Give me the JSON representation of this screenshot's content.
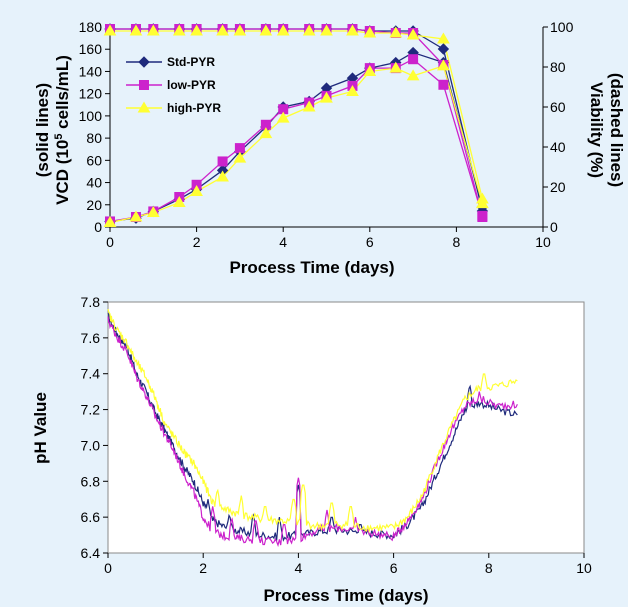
{
  "chart_data": [
    {
      "type": "line",
      "x_label": "Process Time (days)",
      "xlim": [
        0,
        10
      ],
      "x_ticks": [
        "0",
        "2",
        "4",
        "6",
        "8",
        "10"
      ],
      "y_left_label_line1": "(solid lines)",
      "y_left_label_line2_prefix": "VCD (10",
      "y_left_label_superscript": "5",
      "y_left_label_line2_suffix": " cells/mL)",
      "y_left_lim": [
        0,
        180
      ],
      "y_left_ticks": [
        "0",
        "20",
        "40",
        "60",
        "80",
        "100",
        "120",
        "140",
        "160",
        "180"
      ],
      "y_right_label_line1": "(dashed lines)",
      "y_right_label_line2": "Viability (%)",
      "y_right_lim": [
        0,
        100
      ],
      "y_right_ticks": [
        "0",
        "20",
        "40",
        "60",
        "80",
        "100"
      ],
      "legend": [
        "Std-PYR",
        "low-PYR",
        "high-PYR"
      ],
      "legend_position": "top-left",
      "x": [
        0,
        0.6,
        1,
        1.6,
        2,
        2.6,
        3,
        3.6,
        4,
        4.6,
        5,
        5.6,
        6,
        6.6,
        7,
        7.7,
        8.6
      ],
      "series": [
        {
          "name": "Std-PYR",
          "color": "#1f2a7c",
          "marker": "diamond",
          "vcd": [
            5,
            8,
            14,
            25,
            34,
            51,
            68,
            90,
            108,
            113,
            125,
            134,
            143,
            148,
            157,
            148,
            18
          ],
          "viability": [
            99,
            99,
            99,
            99,
            99,
            99,
            99,
            99,
            99,
            99,
            99,
            99,
            98,
            98,
            98,
            89,
            8
          ]
        },
        {
          "name": "low-PYR",
          "color": "#cc22cc",
          "marker": "square",
          "vcd": [
            5,
            9,
            14,
            27,
            38,
            59,
            71,
            92,
            106,
            112,
            118,
            127,
            143,
            143,
            151,
            128,
            10
          ],
          "viability": [
            99,
            99,
            99,
            99,
            99,
            99,
            99,
            99,
            99,
            99,
            99,
            99,
            98,
            97,
            97,
            81,
            5
          ]
        },
        {
          "name": "high-PYR",
          "color": "#ffff33",
          "marker": "triangle",
          "vcd": [
            4,
            9,
            13,
            22,
            32,
            45,
            62,
            84,
            98,
            108,
            116,
            122,
            140,
            143,
            136,
            145,
            21
          ],
          "viability": [
            98,
            98,
            98,
            98,
            98,
            98,
            98,
            98,
            98,
            98,
            98,
            98,
            97,
            97,
            96,
            94,
            14
          ]
        }
      ]
    },
    {
      "type": "line",
      "x_label": "Process Time (days)",
      "y_label": "pH Value",
      "xlim": [
        0,
        10
      ],
      "ylim": [
        6.4,
        7.8
      ],
      "x_ticks": [
        "0",
        "2",
        "4",
        "6",
        "8",
        "10"
      ],
      "y_ticks": [
        "6.4",
        "6.6",
        "6.8",
        "7.0",
        "7.2",
        "7.4",
        "7.6",
        "7.8"
      ],
      "grid": false,
      "series": [
        {
          "name": "Std-PYR",
          "color": "#1f2a7c",
          "points": [
            [
              0,
              7.72
            ],
            [
              0.2,
              7.62
            ],
            [
              0.4,
              7.55
            ],
            [
              0.6,
              7.4
            ],
            [
              0.8,
              7.3
            ],
            [
              1.0,
              7.18
            ],
            [
              1.2,
              7.08
            ],
            [
              1.4,
              6.98
            ],
            [
              1.6,
              6.88
            ],
            [
              1.8,
              6.8
            ],
            [
              2.0,
              6.68
            ],
            [
              2.2,
              6.58
            ],
            [
              2.5,
              6.54
            ],
            [
              2.8,
              6.52
            ],
            [
              3.2,
              6.5
            ],
            [
              3.6,
              6.49
            ],
            [
              4.0,
              6.5
            ],
            [
              4.4,
              6.52
            ],
            [
              4.8,
              6.53
            ],
            [
              5.2,
              6.52
            ],
            [
              5.6,
              6.51
            ],
            [
              6.0,
              6.5
            ],
            [
              6.3,
              6.56
            ],
            [
              6.6,
              6.66
            ],
            [
              6.9,
              6.84
            ],
            [
              7.2,
              7.02
            ],
            [
              7.5,
              7.2
            ],
            [
              7.8,
              7.24
            ],
            [
              8.2,
              7.2
            ],
            [
              8.6,
              7.17
            ]
          ],
          "spikes": [
            [
              2.1,
              6.7
            ],
            [
              2.55,
              6.62
            ],
            [
              3.05,
              6.62
            ],
            [
              3.6,
              6.6
            ],
            [
              4.0,
              6.78
            ],
            [
              4.7,
              6.62
            ],
            [
              5.3,
              6.58
            ],
            [
              7.6,
              7.34
            ]
          ]
        },
        {
          "name": "low-PYR",
          "color": "#cc22cc",
          "points": [
            [
              0,
              7.7
            ],
            [
              0.2,
              7.6
            ],
            [
              0.4,
              7.52
            ],
            [
              0.6,
              7.38
            ],
            [
              0.8,
              7.28
            ],
            [
              1.0,
              7.16
            ],
            [
              1.2,
              7.06
            ],
            [
              1.4,
              6.96
            ],
            [
              1.6,
              6.84
            ],
            [
              1.8,
              6.74
            ],
            [
              2.0,
              6.6
            ],
            [
              2.2,
              6.52
            ],
            [
              2.5,
              6.49
            ],
            [
              2.8,
              6.48
            ],
            [
              3.2,
              6.47
            ],
            [
              3.6,
              6.46
            ],
            [
              4.0,
              6.48
            ],
            [
              4.4,
              6.53
            ],
            [
              4.8,
              6.54
            ],
            [
              5.2,
              6.53
            ],
            [
              5.6,
              6.51
            ],
            [
              6.0,
              6.49
            ],
            [
              6.3,
              6.58
            ],
            [
              6.6,
              6.7
            ],
            [
              6.9,
              6.9
            ],
            [
              7.2,
              7.08
            ],
            [
              7.5,
              7.22
            ],
            [
              7.8,
              7.26
            ],
            [
              8.2,
              7.22
            ],
            [
              8.6,
              7.23
            ]
          ],
          "spikes": [
            [
              2.2,
              6.66
            ],
            [
              2.6,
              6.6
            ],
            [
              3.1,
              6.6
            ],
            [
              3.7,
              6.58
            ],
            [
              4.0,
              6.82
            ],
            [
              4.6,
              6.64
            ],
            [
              5.2,
              6.6
            ],
            [
              7.8,
              7.3
            ]
          ]
        },
        {
          "name": "high-PYR",
          "color": "#ffff33",
          "points": [
            [
              0,
              7.74
            ],
            [
              0.2,
              7.64
            ],
            [
              0.4,
              7.57
            ],
            [
              0.6,
              7.46
            ],
            [
              0.8,
              7.38
            ],
            [
              1.0,
              7.26
            ],
            [
              1.2,
              7.12
            ],
            [
              1.4,
              7.04
            ],
            [
              1.6,
              6.96
            ],
            [
              1.8,
              6.9
            ],
            [
              2.0,
              6.8
            ],
            [
              2.2,
              6.68
            ],
            [
              2.5,
              6.64
            ],
            [
              2.8,
              6.61
            ],
            [
              3.2,
              6.59
            ],
            [
              3.6,
              6.58
            ],
            [
              4.0,
              6.57
            ],
            [
              4.4,
              6.55
            ],
            [
              4.8,
              6.56
            ],
            [
              5.2,
              6.55
            ],
            [
              5.6,
              6.54
            ],
            [
              6.0,
              6.54
            ],
            [
              6.3,
              6.6
            ],
            [
              6.6,
              6.72
            ],
            [
              6.9,
              6.92
            ],
            [
              7.2,
              7.1
            ],
            [
              7.5,
              7.26
            ],
            [
              7.8,
              7.32
            ],
            [
              8.2,
              7.33
            ],
            [
              8.6,
              7.36
            ]
          ],
          "spikes": [
            [
              2.3,
              6.76
            ],
            [
              2.8,
              6.72
            ],
            [
              3.3,
              6.68
            ],
            [
              3.9,
              6.72
            ],
            [
              4.1,
              6.8
            ],
            [
              4.7,
              6.7
            ],
            [
              5.1,
              6.68
            ],
            [
              7.9,
              7.42
            ]
          ]
        }
      ]
    }
  ]
}
